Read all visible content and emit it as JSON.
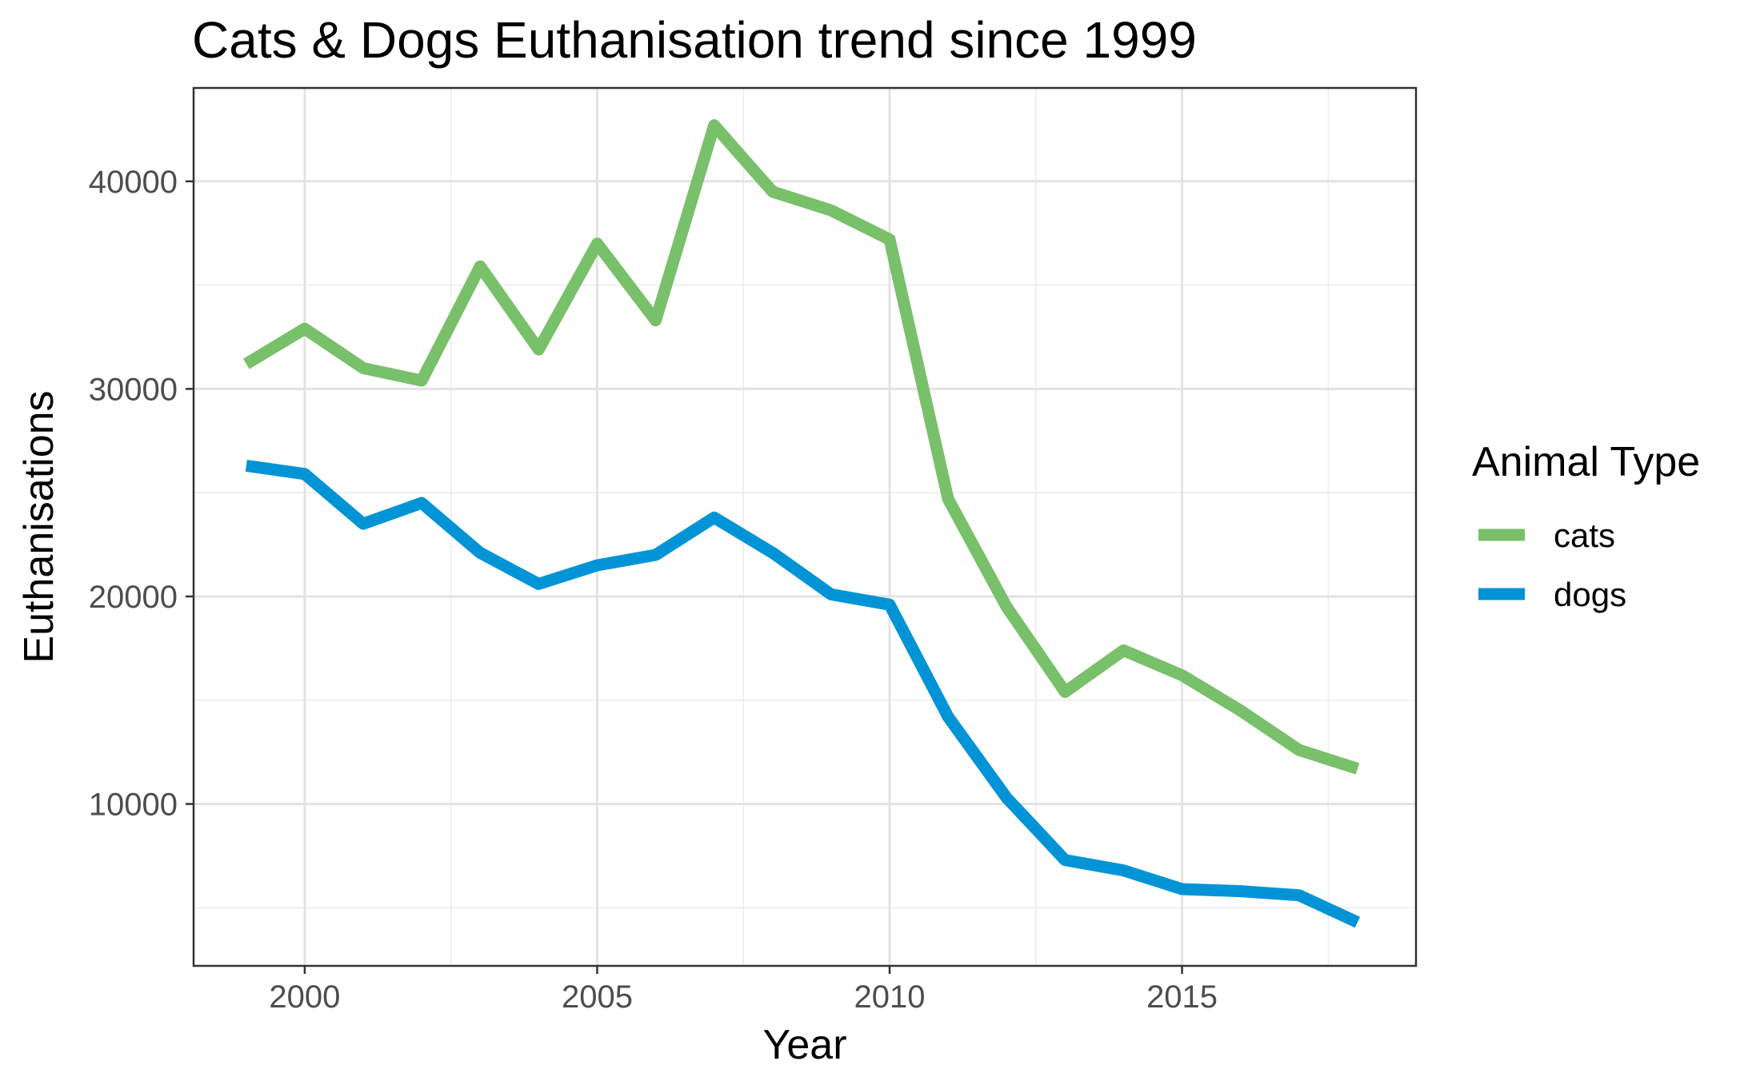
{
  "chart_data": {
    "type": "line",
    "title": "Cats & Dogs Euthanisation trend since 1999",
    "xlabel": "Year",
    "ylabel": "Euthanisations",
    "x": [
      1999,
      2000,
      2001,
      2002,
      2003,
      2004,
      2005,
      2006,
      2007,
      2008,
      2009,
      2010,
      2011,
      2012,
      2013,
      2014,
      2015,
      2016,
      2017,
      2018
    ],
    "series": [
      {
        "name": "cats",
        "color": "#78c06a",
        "values": [
          31200,
          32900,
          31000,
          30400,
          35900,
          31900,
          37000,
          33300,
          42700,
          39500,
          38600,
          37200,
          24700,
          19500,
          15400,
          17400,
          16200,
          14500,
          12600,
          11700
        ]
      },
      {
        "name": "dogs",
        "color": "#0094d6",
        "values": [
          26300,
          25900,
          23500,
          24500,
          22100,
          20600,
          21500,
          22000,
          23800,
          22100,
          20100,
          19600,
          14200,
          10300,
          7300,
          6800,
          5900,
          5800,
          5600,
          4300
        ]
      }
    ],
    "xlim": [
      1998.1,
      2019.0
    ],
    "ylim": [
      2200,
      44500
    ],
    "xticks": [
      2000,
      2005,
      2010,
      2015
    ],
    "xtick_labels": [
      "2000",
      "2005",
      "2010",
      "2015"
    ],
    "xminor": [
      2002.5,
      2007.5,
      2012.5,
      2017.5
    ],
    "yticks": [
      10000,
      20000,
      30000,
      40000
    ],
    "ytick_labels": [
      "10000",
      "20000",
      "30000",
      "40000"
    ],
    "yminor": [
      5000,
      15000,
      25000,
      35000
    ],
    "grid": true,
    "legend_title": "Animal Type",
    "legend_position": "right"
  }
}
